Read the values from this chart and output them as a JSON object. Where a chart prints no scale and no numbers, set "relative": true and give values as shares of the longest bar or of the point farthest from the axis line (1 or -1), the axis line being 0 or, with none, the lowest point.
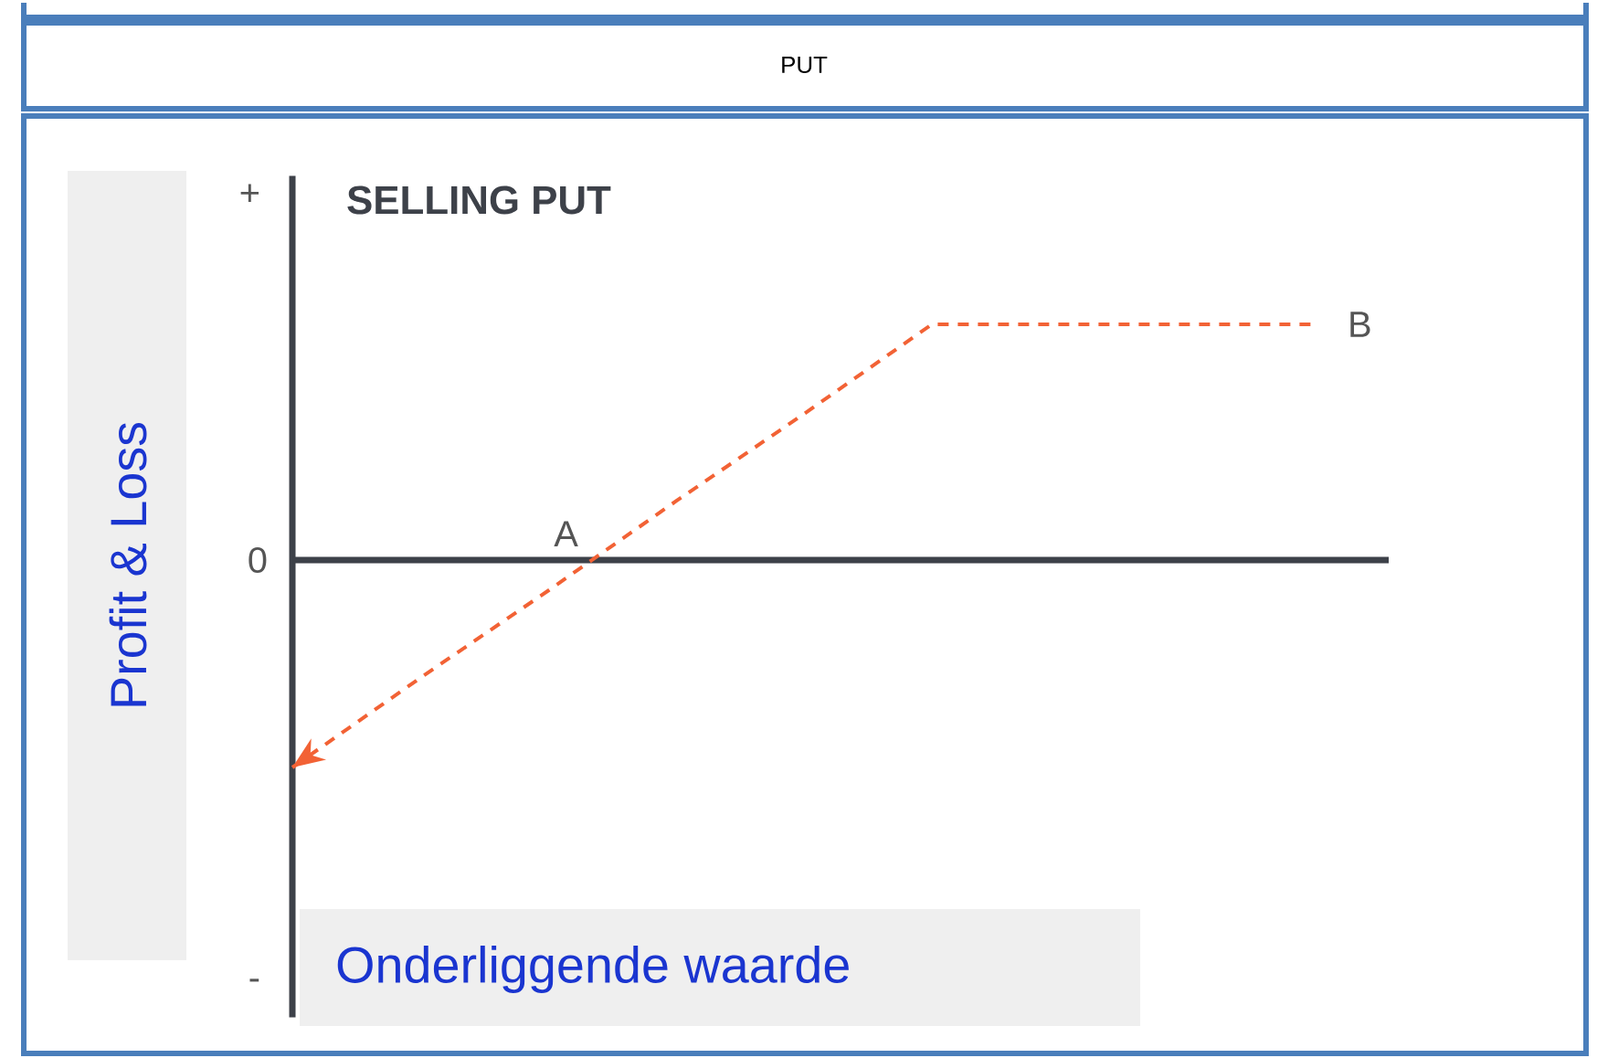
{
  "chart_data": {
    "type": "line",
    "title": "PUT",
    "subtitle": "SELLING PUT",
    "xlabel": "Onderliggende waarde",
    "ylabel": "Profit & Loss",
    "categories": [
      null,
      null,
      null,
      null,
      null,
      null,
      null,
      null,
      null
    ],
    "series": [
      {
        "color": "#f26235",
        "values": [
          -0.88,
          -0.5,
          -0.13,
          0.25,
          0.62,
          1,
          1,
          1,
          1
        ]
      }
    ],
    "relative": true,
    "line_style": "dashed",
    "marker": "none",
    "ref_lines": [
      {
        "axis": "y",
        "value": 0,
        "label": "0",
        "color": "#3d4149"
      }
    ],
    "annotations": [
      "+",
      "-",
      "A",
      "B"
    ]
  }
}
